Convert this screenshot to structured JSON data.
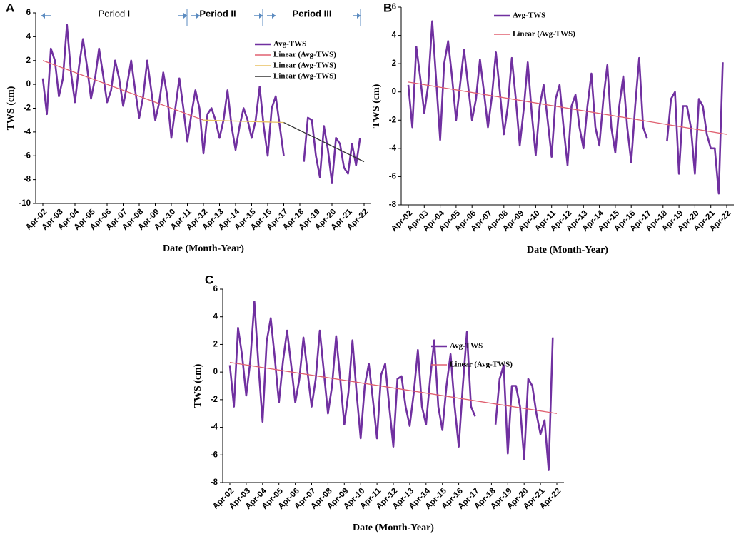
{
  "chart_data": [
    {
      "type": "line",
      "panel": "A",
      "x_label": "Date (Month-Year)",
      "y_label": "TWS (cm)",
      "categories": [
        "Apr-02",
        null,
        null,
        null,
        "Apr-03",
        null,
        null,
        null,
        "Apr-04",
        null,
        null,
        null,
        "Apr-05",
        null,
        null,
        null,
        "Apr-06",
        null,
        null,
        null,
        "Apr-07",
        null,
        null,
        null,
        "Apr-08",
        null,
        null,
        null,
        "Apr-09",
        null,
        null,
        null,
        "Apr-10",
        null,
        null,
        null,
        "Apr-11",
        null,
        null,
        null,
        "Apr-12",
        null,
        null,
        null,
        "Apr-13",
        null,
        null,
        null,
        "Apr-14",
        null,
        null,
        null,
        "Apr-15",
        null,
        null,
        null,
        "Apr-16",
        null,
        null,
        null,
        "Apr-17",
        null,
        null,
        null,
        "Apr-18",
        null,
        null,
        null,
        "Apr-19",
        null,
        null,
        null,
        "Apr-20",
        null,
        null,
        null,
        "Apr-21",
        null,
        null,
        null,
        "Apr-22"
      ],
      "series": [
        {
          "name": "Avg-TWS",
          "color": "#7030a0",
          "values": [
            0.5,
            -2.5,
            3.0,
            2.0,
            -1,
            0.5,
            5.0,
            1.0,
            -1.5,
            1.5,
            3.8,
            1.5,
            -1.2,
            0.5,
            3.0,
            0.8,
            -1.5,
            -0.5,
            2.0,
            0.5,
            -1.8,
            0.0,
            2.0,
            -0.5,
            -2.8,
            -1.0,
            2.0,
            -0.5,
            -3.0,
            -1.5,
            1.0,
            -1.0,
            -4.5,
            -2.0,
            0.5,
            -2.0,
            -4.8,
            -2.5,
            -0.5,
            -2.0,
            -5.8,
            -2.5,
            -2.0,
            -3.0,
            -4.5,
            -3.0,
            -0.5,
            -3.5,
            -5.5,
            -3.5,
            -2.0,
            -3.0,
            -4.5,
            -3.0,
            -0.2,
            -3.5,
            -6.0,
            -2.0,
            -1.0,
            -3.5,
            -6.0,
            null,
            null,
            null,
            null,
            -6.5,
            -2.8,
            -3.0,
            -6.0,
            -7.8,
            -3.5,
            -5.5,
            -8.3,
            -4.5,
            -5.0,
            -7.0,
            -7.5,
            -5.0,
            -6.8,
            -4.5,
            null
          ]
        }
      ],
      "trends": [
        {
          "name": "Linear (Avg-TWS)",
          "color": "#e06070",
          "x": [
            "Apr-02",
            "Apr-12"
          ],
          "values": [
            2.0,
            -3.0
          ]
        },
        {
          "name": "Linear (Avg-TWS)",
          "color": "#e8c060",
          "x": [
            "Apr-12",
            "Apr-17"
          ],
          "values": [
            -3.0,
            -3.2
          ]
        },
        {
          "name": "Linear (Avg-TWS)",
          "color": "#333333",
          "x": [
            "Apr-17",
            "Apr-22"
          ],
          "values": [
            -3.2,
            -6.5
          ]
        }
      ],
      "annotations": [
        "Period I",
        "Period II",
        "Period III"
      ],
      "ylim": [
        -10,
        6
      ],
      "yticks": [
        -10,
        -8,
        -6,
        -4,
        -2,
        0,
        2,
        4,
        6
      ],
      "grid": false
    },
    {
      "type": "line",
      "panel": "B",
      "x_label": "Date (Month-Year)",
      "y_label": "TWS (cm)",
      "categories": [
        "Apr-02",
        null,
        null,
        null,
        "Apr-03",
        null,
        null,
        null,
        "Apr-04",
        null,
        null,
        null,
        "Apr-05",
        null,
        null,
        null,
        "Apr-06",
        null,
        null,
        null,
        "Apr-07",
        null,
        null,
        null,
        "Apr-08",
        null,
        null,
        null,
        "Apr-09",
        null,
        null,
        null,
        "Apr-10",
        null,
        null,
        null,
        "Apr-11",
        null,
        null,
        null,
        "Apr-12",
        null,
        null,
        null,
        "Apr-13",
        null,
        null,
        null,
        "Apr-14",
        null,
        null,
        null,
        "Apr-15",
        null,
        null,
        null,
        "Apr-16",
        null,
        null,
        null,
        "Apr-17",
        null,
        null,
        null,
        "Apr-18",
        null,
        null,
        null,
        "Apr-19",
        null,
        null,
        null,
        "Apr-20",
        null,
        null,
        null,
        "Apr-21",
        null,
        null,
        null,
        "Apr-22"
      ],
      "series": [
        {
          "name": "Avg-TWS",
          "color": "#7030a0",
          "values": [
            0.5,
            -2.5,
            3.2,
            1.0,
            -1.5,
            0.5,
            5.0,
            0.8,
            -3.4,
            2.0,
            3.6,
            1.0,
            -2.0,
            0.5,
            3.0,
            0.5,
            -2.0,
            -0.5,
            2.3,
            0.0,
            -2.5,
            -0.3,
            2.8,
            0.0,
            -3.0,
            -1.0,
            2.4,
            -0.5,
            -3.8,
            -1.2,
            2.1,
            -1.5,
            -4.5,
            -1.0,
            0.5,
            -2.0,
            -4.6,
            -0.5,
            0.5,
            -2.5,
            -5.2,
            -1.0,
            -0.2,
            -2.5,
            -4.0,
            -1.0,
            1.3,
            -2.5,
            -3.8,
            -0.5,
            1.9,
            -2.5,
            -4.3,
            -1.0,
            1.1,
            -2.5,
            -5.0,
            -1.0,
            2.4,
            -2.5,
            -3.3,
            null,
            null,
            null,
            null,
            -3.5,
            -0.5,
            0.0,
            -5.8,
            -1.0,
            -1.0,
            -2.5,
            -5.8,
            -0.5,
            -1.0,
            -3.0,
            -4.0,
            -4.0,
            -7.2,
            2.1,
            null
          ]
        }
      ],
      "trends": [
        {
          "name": "Linear (Avg-TWS)",
          "color": "#e06070",
          "x": [
            "Apr-02",
            "Apr-22"
          ],
          "values": [
            0.7,
            -3.0
          ]
        }
      ],
      "ylim": [
        -8,
        6
      ],
      "yticks": [
        -8,
        -6,
        -4,
        -2,
        0,
        2,
        4,
        6
      ],
      "grid": false
    },
    {
      "type": "line",
      "panel": "C",
      "x_label": "Date (Month-Year)",
      "y_label": "TWS (cm)",
      "categories": [
        "Apr-02",
        null,
        null,
        null,
        "Apr-03",
        null,
        null,
        null,
        "Apr-04",
        null,
        null,
        null,
        "Apr-05",
        null,
        null,
        null,
        "Apr-06",
        null,
        null,
        null,
        "Apr-07",
        null,
        null,
        null,
        "Apr-08",
        null,
        null,
        null,
        "Apr-09",
        null,
        null,
        null,
        "Apr-10",
        null,
        null,
        null,
        "Apr-11",
        null,
        null,
        null,
        "Apr-12",
        null,
        null,
        null,
        "Apr-13",
        null,
        null,
        null,
        "Apr-14",
        null,
        null,
        null,
        "Apr-15",
        null,
        null,
        null,
        "Apr-16",
        null,
        null,
        null,
        "Apr-17",
        null,
        null,
        null,
        "Apr-18",
        null,
        null,
        null,
        "Apr-19",
        null,
        null,
        null,
        "Apr-20",
        null,
        null,
        null,
        "Apr-21",
        null,
        null,
        null,
        "Apr-22"
      ],
      "series": [
        {
          "name": "Avg-TWS",
          "color": "#7030a0",
          "values": [
            0.5,
            -2.5,
            3.2,
            1.2,
            -1.7,
            0.8,
            5.1,
            0.5,
            -3.6,
            2.2,
            3.9,
            1.0,
            -2.2,
            0.8,
            3.0,
            0.5,
            -2.2,
            -0.5,
            2.5,
            0.0,
            -2.5,
            -0.5,
            3.0,
            0.0,
            -3.0,
            -1.0,
            2.6,
            -0.5,
            -3.8,
            -1.5,
            2.3,
            -1.5,
            -4.8,
            -1.0,
            0.6,
            -2.0,
            -4.8,
            -0.2,
            0.6,
            -2.5,
            -5.4,
            -0.5,
            -0.3,
            -2.5,
            -3.9,
            -1.5,
            1.6,
            -2.5,
            -3.8,
            -0.5,
            2.3,
            -2.5,
            -4.2,
            -1.0,
            1.3,
            -2.5,
            -5.4,
            -1.0,
            2.9,
            -2.5,
            -3.2,
            null,
            null,
            null,
            null,
            -3.8,
            -0.5,
            0.5,
            -5.9,
            -1.0,
            -1.0,
            -2.5,
            -6.3,
            -0.5,
            -1.0,
            -3.0,
            -4.5,
            -3.5,
            -7.1,
            2.5,
            null
          ]
        }
      ],
      "trends": [
        {
          "name": "Linear (Avg-TWS)",
          "color": "#e06070",
          "x": [
            "Apr-02",
            "Apr-22"
          ],
          "values": [
            0.7,
            -3.0
          ]
        }
      ],
      "ylim": [
        -8,
        6
      ],
      "yticks": [
        -8,
        -6,
        -4,
        -2,
        0,
        2,
        4,
        6
      ],
      "grid": false
    }
  ]
}
